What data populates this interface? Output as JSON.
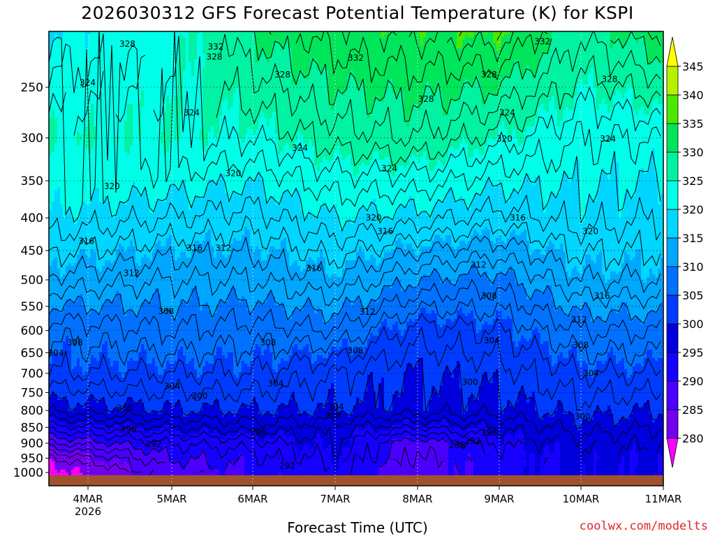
{
  "header": {
    "title": "2026030312 GFS Forecast Potential Temperature (K) for KSPI"
  },
  "footer": {
    "xlabel": "Forecast Time (UTC)",
    "credit": "coolwx.com/modelts"
  },
  "chart_data": {
    "type": "heatmap",
    "title": "2026030312 GFS Forecast Potential Temperature (K) for KSPI",
    "xlabel": "Forecast Time (UTC)",
    "ylabel": "",
    "x_ticks": [
      "4MAR",
      "5MAR",
      "6MAR",
      "7MAR",
      "8MAR",
      "9MAR",
      "10MAR",
      "11MAR"
    ],
    "x_year": "2026",
    "x_range_hours": [
      0,
      180
    ],
    "y_ticks": [
      250,
      300,
      350,
      400,
      450,
      500,
      550,
      600,
      650,
      700,
      750,
      800,
      850,
      900,
      950,
      1000
    ],
    "y_range_hpa": [
      200,
      1015
    ],
    "colorbar": {
      "levels": [
        280,
        285,
        290,
        295,
        300,
        305,
        310,
        315,
        320,
        325,
        330,
        335,
        340,
        345
      ],
      "colors": [
        "#8b00d8",
        "#7300f0",
        "#4b00ff",
        "#1600ff",
        "#0000de",
        "#003cff",
        "#0072ff",
        "#00a7ff",
        "#00d6ff",
        "#00ffe8",
        "#00f2a2",
        "#00e55a",
        "#4ce800",
        "#b8f000",
        "#ffff00"
      ],
      "under_color": "#ff00ff",
      "over_color": "#ffff00"
    },
    "ground_color": "#a0522d",
    "profile_levels": [
      250,
      300,
      400,
      500,
      600,
      700,
      800,
      850,
      900,
      950,
      1000
    ],
    "series": [
      {
        "name": "4MAR",
        "hour": 12,
        "values": [
          323,
          325,
          319,
          313,
          307,
          304,
          299,
          294,
          289,
          284,
          281
        ]
      },
      {
        "name": "5MAR",
        "hour": 36,
        "values": [
          324,
          325,
          318,
          312,
          308,
          304,
          300,
          296,
          292,
          290,
          288
        ]
      },
      {
        "name": "6MAR",
        "hour": 60,
        "values": [
          327,
          324,
          317,
          312,
          307,
          304,
          300,
          297,
          293,
          291,
          290
        ]
      },
      {
        "name": "7MAR",
        "hour": 84,
        "values": [
          330,
          327,
          320,
          314,
          308,
          302,
          300,
          297,
          296,
          295,
          294
        ]
      },
      {
        "name": "8MAR",
        "hour": 108,
        "values": [
          331,
          328,
          319,
          310,
          303,
          300,
          299,
          294,
          288,
          287,
          286
        ]
      },
      {
        "name": "9MAR",
        "hour": 132,
        "values": [
          330,
          325,
          317,
          309,
          304,
          301,
          299,
          296,
          294,
          293,
          293
        ]
      },
      {
        "name": "10MAR",
        "hour": 156,
        "values": [
          325,
          322,
          319,
          314,
          308,
          304,
          301,
          299,
          297,
          296,
          296
        ]
      },
      {
        "name": "11MAR",
        "hour": 180,
        "values": [
          327,
          322,
          318,
          314,
          308,
          304,
          300,
          298,
          296,
          295,
          295
        ]
      }
    ],
    "contour_labels": [
      {
        "text": "332",
        "hour": 49.3,
        "p": 216
      },
      {
        "text": "332",
        "hour": 90.2,
        "p": 225
      },
      {
        "text": "332",
        "hour": 144.7,
        "p": 212
      },
      {
        "text": "328",
        "hour": 23.5,
        "p": 214
      },
      {
        "text": "328",
        "hour": 48.9,
        "p": 224
      },
      {
        "text": "328",
        "hour": 68.8,
        "p": 239
      },
      {
        "text": "328",
        "hour": 110.7,
        "p": 261
      },
      {
        "text": "328",
        "hour": 129.1,
        "p": 239
      },
      {
        "text": "328",
        "hour": 164.3,
        "p": 243
      },
      {
        "text": "324",
        "hour": 11.9,
        "p": 246
      },
      {
        "text": "324",
        "hour": 42.3,
        "p": 274
      },
      {
        "text": "324",
        "hour": 73.9,
        "p": 311
      },
      {
        "text": "324",
        "hour": 100.0,
        "p": 335
      },
      {
        "text": "324",
        "hour": 134.4,
        "p": 274
      },
      {
        "text": "324",
        "hour": 163.8,
        "p": 301
      },
      {
        "text": "320",
        "hour": 19.0,
        "p": 357
      },
      {
        "text": "320",
        "hour": 54.4,
        "p": 341
      },
      {
        "text": "320",
        "hour": 95.4,
        "p": 400
      },
      {
        "text": "320",
        "hour": 133.6,
        "p": 301
      },
      {
        "text": "320",
        "hour": 158.7,
        "p": 420
      },
      {
        "text": "316",
        "hour": 11.5,
        "p": 435
      },
      {
        "text": "316",
        "hour": 43.1,
        "p": 446
      },
      {
        "text": "316",
        "hour": 78.0,
        "p": 480
      },
      {
        "text": "316",
        "hour": 98.8,
        "p": 420
      },
      {
        "text": "316",
        "hour": 137.5,
        "p": 400
      },
      {
        "text": "316",
        "hour": 162.1,
        "p": 530
      },
      {
        "text": "312",
        "hour": 51.5,
        "p": 446
      },
      {
        "text": "312",
        "hour": 24.7,
        "p": 488
      },
      {
        "text": "312",
        "hour": 93.6,
        "p": 561
      },
      {
        "text": "312",
        "hour": 126.0,
        "p": 474
      },
      {
        "text": "312",
        "hour": 155.4,
        "p": 577
      },
      {
        "text": "308",
        "hour": 34.8,
        "p": 560
      },
      {
        "text": "308",
        "hour": 8.2,
        "p": 627
      },
      {
        "text": "308",
        "hour": 64.6,
        "p": 627
      },
      {
        "text": "308",
        "hour": 90.1,
        "p": 645
      },
      {
        "text": "308",
        "hour": 129.1,
        "p": 530
      },
      {
        "text": "308",
        "hour": 155.9,
        "p": 632
      },
      {
        "text": "304",
        "hour": 2.6,
        "p": 651
      },
      {
        "text": "304",
        "hour": 36.6,
        "p": 733
      },
      {
        "text": "304",
        "hour": 66.8,
        "p": 726
      },
      {
        "text": "304",
        "hour": 84.4,
        "p": 790
      },
      {
        "text": "304",
        "hour": 129.9,
        "p": 622
      },
      {
        "text": "304",
        "hour": 158.9,
        "p": 700
      },
      {
        "text": "300",
        "hour": 22.7,
        "p": 794
      },
      {
        "text": "300",
        "hour": 44.6,
        "p": 760
      },
      {
        "text": "300",
        "hour": 83.4,
        "p": 815
      },
      {
        "text": "300",
        "hour": 123.6,
        "p": 722
      },
      {
        "text": "300",
        "hour": 156.4,
        "p": 818
      },
      {
        "text": "296",
        "hour": 23.9,
        "p": 857
      },
      {
        "text": "296",
        "hour": 61.7,
        "p": 864
      },
      {
        "text": "296",
        "hour": 129.1,
        "p": 867
      },
      {
        "text": "292",
        "hour": 31.2,
        "p": 903
      },
      {
        "text": "292",
        "hour": 70.2,
        "p": 977
      },
      {
        "text": "292",
        "hour": 124.3,
        "p": 893
      },
      {
        "text": "288",
        "hour": 119.8,
        "p": 907
      }
    ]
  }
}
